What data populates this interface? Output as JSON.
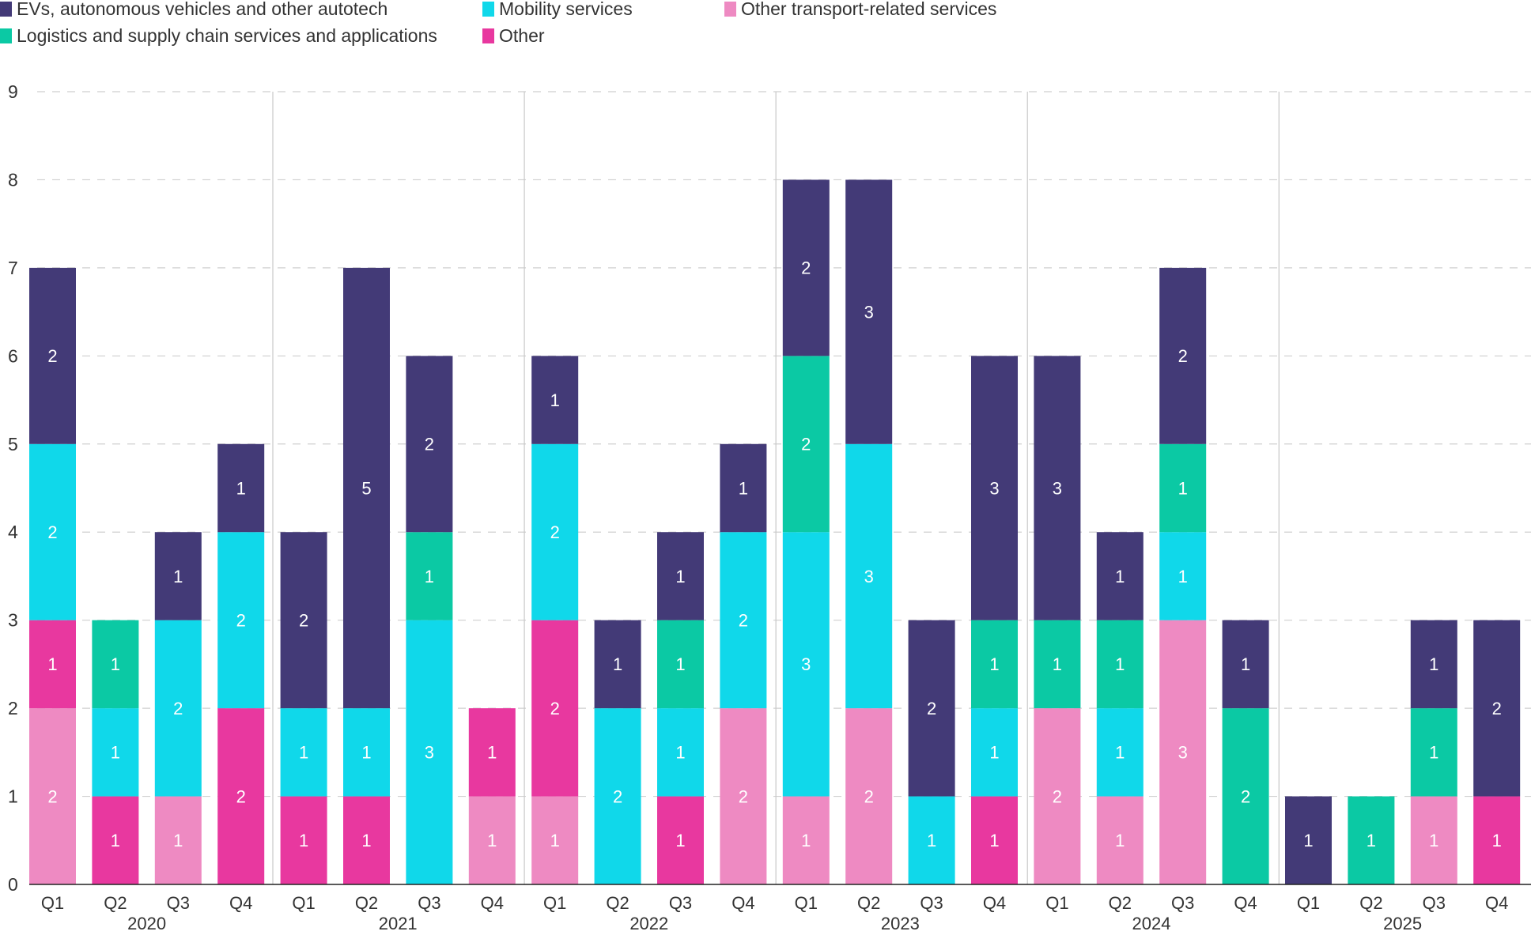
{
  "chart_data": {
    "type": "bar",
    "stacked": true,
    "title": "",
    "xlabel": "",
    "ylabel": "",
    "ylim": [
      0,
      9
    ],
    "yticks": [
      0,
      1,
      2,
      3,
      4,
      5,
      6,
      7,
      8,
      9
    ],
    "grid": "horizontal-dashed",
    "legend_position": "top-left",
    "years": [
      "2020",
      "2021",
      "2022",
      "2023",
      "2024",
      "2025"
    ],
    "categories": [
      {
        "quarter": "Q1",
        "year": "2020"
      },
      {
        "quarter": "Q2",
        "year": "2020"
      },
      {
        "quarter": "Q3",
        "year": "2020"
      },
      {
        "quarter": "Q4",
        "year": "2020"
      },
      {
        "quarter": "Q1",
        "year": "2021"
      },
      {
        "quarter": "Q2",
        "year": "2021"
      },
      {
        "quarter": "Q3",
        "year": "2021"
      },
      {
        "quarter": "Q4",
        "year": "2021"
      },
      {
        "quarter": "Q1",
        "year": "2022"
      },
      {
        "quarter": "Q2",
        "year": "2022"
      },
      {
        "quarter": "Q3",
        "year": "2022"
      },
      {
        "quarter": "Q4",
        "year": "2022"
      },
      {
        "quarter": "Q1",
        "year": "2023"
      },
      {
        "quarter": "Q2",
        "year": "2023"
      },
      {
        "quarter": "Q3",
        "year": "2023"
      },
      {
        "quarter": "Q4",
        "year": "2023"
      },
      {
        "quarter": "Q1",
        "year": "2024"
      },
      {
        "quarter": "Q2",
        "year": "2024"
      },
      {
        "quarter": "Q3",
        "year": "2024"
      },
      {
        "quarter": "Q4",
        "year": "2024"
      },
      {
        "quarter": "Q1",
        "year": "2025"
      },
      {
        "quarter": "Q2",
        "year": "2025"
      },
      {
        "quarter": "Q3",
        "year": "2025"
      },
      {
        "quarter": "Q4",
        "year": "2025"
      }
    ],
    "series": [
      {
        "name": "Other transport-related services",
        "color": "#EE8AC2",
        "values": [
          2,
          0,
          1,
          0,
          0,
          0,
          0,
          1,
          1,
          0,
          0,
          2,
          1,
          2,
          0,
          0,
          2,
          1,
          3,
          0,
          0,
          0,
          1,
          0
        ]
      },
      {
        "name": "Other",
        "color": "#E8389F",
        "values": [
          1,
          1,
          0,
          2,
          1,
          1,
          0,
          1,
          2,
          0,
          1,
          0,
          0,
          0,
          0,
          1,
          0,
          0,
          0,
          0,
          0,
          0,
          0,
          1
        ]
      },
      {
        "name": "Mobility services",
        "color": "#10D8EA",
        "values": [
          2,
          1,
          2,
          2,
          1,
          1,
          3,
          0,
          2,
          2,
          1,
          2,
          3,
          3,
          1,
          1,
          0,
          1,
          1,
          0,
          0,
          0,
          0,
          0
        ]
      },
      {
        "name": "Logistics and supply chain services and applications",
        "color": "#0BC9A4",
        "values": [
          0,
          1,
          0,
          0,
          0,
          0,
          1,
          0,
          0,
          0,
          1,
          0,
          2,
          0,
          0,
          1,
          1,
          1,
          1,
          2,
          0,
          1,
          1,
          0
        ]
      },
      {
        "name": "EVs, autonomous vehicles and other autotech",
        "color": "#433A77",
        "values": [
          2,
          0,
          1,
          1,
          2,
          5,
          2,
          0,
          1,
          1,
          1,
          1,
          2,
          3,
          2,
          3,
          3,
          1,
          2,
          1,
          1,
          0,
          1,
          2
        ]
      }
    ]
  },
  "legend": [
    {
      "label": "EVs, autonomous vehicles and other autotech",
      "color": "#433A77"
    },
    {
      "label": "Logistics and supply chain services and applications",
      "color": "#0BC9A4"
    },
    {
      "label": "Mobility services",
      "color": "#10D8EA"
    },
    {
      "label": "Other",
      "color": "#E8389F"
    },
    {
      "label": "Other transport-related services",
      "color": "#EE8AC2"
    }
  ]
}
